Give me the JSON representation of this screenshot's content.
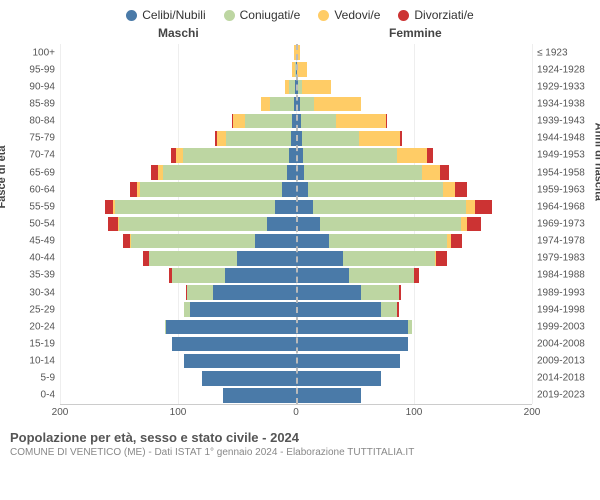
{
  "legend": [
    {
      "label": "Celibi/Nubili",
      "color": "#4a7aa8"
    },
    {
      "label": "Coniugati/e",
      "color": "#bdd6a2"
    },
    {
      "label": "Vedovi/e",
      "color": "#ffcc66"
    },
    {
      "label": "Divorziati/e",
      "color": "#cc3333"
    }
  ],
  "headers": {
    "male": "Maschi",
    "female": "Femmine"
  },
  "axes": {
    "y_left_title": "Fasce di età",
    "y_right_title": "Anni di nascita",
    "x_ticks": [
      200,
      100,
      0,
      100,
      200
    ],
    "x_max": 200
  },
  "colors": {
    "celibi": "#4a7aa8",
    "coniugati": "#bdd6a2",
    "vedovi": "#ffcc66",
    "divorziati": "#cc3333",
    "grid": "#eeeeee",
    "center_dash": "#bbbbbb",
    "background": "#ffffff"
  },
  "rows": [
    {
      "age": "100+",
      "years": "≤ 1923",
      "m": {
        "c": 0,
        "co": 0,
        "v": 2,
        "d": 0
      },
      "f": {
        "c": 0,
        "co": 0,
        "v": 3,
        "d": 0
      }
    },
    {
      "age": "95-99",
      "years": "1924-1928",
      "m": {
        "c": 0,
        "co": 1,
        "v": 2,
        "d": 0
      },
      "f": {
        "c": 1,
        "co": 0,
        "v": 8,
        "d": 0
      }
    },
    {
      "age": "90-94",
      "years": "1929-1933",
      "m": {
        "c": 1,
        "co": 5,
        "v": 3,
        "d": 0
      },
      "f": {
        "c": 2,
        "co": 3,
        "v": 25,
        "d": 0
      }
    },
    {
      "age": "85-89",
      "years": "1934-1938",
      "m": {
        "c": 2,
        "co": 20,
        "v": 8,
        "d": 0
      },
      "f": {
        "c": 3,
        "co": 12,
        "v": 40,
        "d": 0
      }
    },
    {
      "age": "80-84",
      "years": "1939-1943",
      "m": {
        "c": 3,
        "co": 40,
        "v": 10,
        "d": 1
      },
      "f": {
        "c": 4,
        "co": 30,
        "v": 42,
        "d": 1
      }
    },
    {
      "age": "75-79",
      "years": "1944-1948",
      "m": {
        "c": 4,
        "co": 55,
        "v": 8,
        "d": 2
      },
      "f": {
        "c": 5,
        "co": 48,
        "v": 35,
        "d": 2
      }
    },
    {
      "age": "70-74",
      "years": "1949-1953",
      "m": {
        "c": 6,
        "co": 90,
        "v": 6,
        "d": 4
      },
      "f": {
        "c": 6,
        "co": 80,
        "v": 25,
        "d": 5
      }
    },
    {
      "age": "65-69",
      "years": "1954-1958",
      "m": {
        "c": 8,
        "co": 105,
        "v": 4,
        "d": 6
      },
      "f": {
        "c": 7,
        "co": 100,
        "v": 15,
        "d": 8
      }
    },
    {
      "age": "60-64",
      "years": "1959-1963",
      "m": {
        "c": 12,
        "co": 120,
        "v": 3,
        "d": 6
      },
      "f": {
        "c": 10,
        "co": 115,
        "v": 10,
        "d": 10
      }
    },
    {
      "age": "55-59",
      "years": "1964-1968",
      "m": {
        "c": 18,
        "co": 135,
        "v": 2,
        "d": 7
      },
      "f": {
        "c": 14,
        "co": 130,
        "v": 8,
        "d": 14
      }
    },
    {
      "age": "50-54",
      "years": "1969-1973",
      "m": {
        "c": 25,
        "co": 125,
        "v": 1,
        "d": 8
      },
      "f": {
        "c": 20,
        "co": 120,
        "v": 5,
        "d": 12
      }
    },
    {
      "age": "45-49",
      "years": "1974-1978",
      "m": {
        "c": 35,
        "co": 105,
        "v": 1,
        "d": 6
      },
      "f": {
        "c": 28,
        "co": 100,
        "v": 3,
        "d": 10
      }
    },
    {
      "age": "40-44",
      "years": "1979-1983",
      "m": {
        "c": 50,
        "co": 75,
        "v": 0,
        "d": 5
      },
      "f": {
        "c": 40,
        "co": 78,
        "v": 1,
        "d": 9
      }
    },
    {
      "age": "35-39",
      "years": "1984-1988",
      "m": {
        "c": 60,
        "co": 45,
        "v": 0,
        "d": 3
      },
      "f": {
        "c": 45,
        "co": 55,
        "v": 0,
        "d": 4
      }
    },
    {
      "age": "30-34",
      "years": "1989-1993",
      "m": {
        "c": 70,
        "co": 22,
        "v": 0,
        "d": 1
      },
      "f": {
        "c": 55,
        "co": 32,
        "v": 0,
        "d": 2
      }
    },
    {
      "age": "25-29",
      "years": "1994-1998",
      "m": {
        "c": 90,
        "co": 5,
        "v": 0,
        "d": 0
      },
      "f": {
        "c": 72,
        "co": 14,
        "v": 0,
        "d": 1
      }
    },
    {
      "age": "20-24",
      "years": "1999-2003",
      "m": {
        "c": 110,
        "co": 1,
        "v": 0,
        "d": 0
      },
      "f": {
        "c": 95,
        "co": 3,
        "v": 0,
        "d": 0
      }
    },
    {
      "age": "15-19",
      "years": "2004-2008",
      "m": {
        "c": 105,
        "co": 0,
        "v": 0,
        "d": 0
      },
      "f": {
        "c": 95,
        "co": 0,
        "v": 0,
        "d": 0
      }
    },
    {
      "age": "10-14",
      "years": "2009-2013",
      "m": {
        "c": 95,
        "co": 0,
        "v": 0,
        "d": 0
      },
      "f": {
        "c": 88,
        "co": 0,
        "v": 0,
        "d": 0
      }
    },
    {
      "age": "5-9",
      "years": "2014-2018",
      "m": {
        "c": 80,
        "co": 0,
        "v": 0,
        "d": 0
      },
      "f": {
        "c": 72,
        "co": 0,
        "v": 0,
        "d": 0
      }
    },
    {
      "age": "0-4",
      "years": "2019-2023",
      "m": {
        "c": 62,
        "co": 0,
        "v": 0,
        "d": 0
      },
      "f": {
        "c": 55,
        "co": 0,
        "v": 0,
        "d": 0
      }
    }
  ],
  "footer": {
    "title": "Popolazione per età, sesso e stato civile - 2024",
    "subtitle": "COMUNE DI VENETICO (ME) - Dati ISTAT 1° gennaio 2024 - Elaborazione TUTTITALIA.IT"
  }
}
